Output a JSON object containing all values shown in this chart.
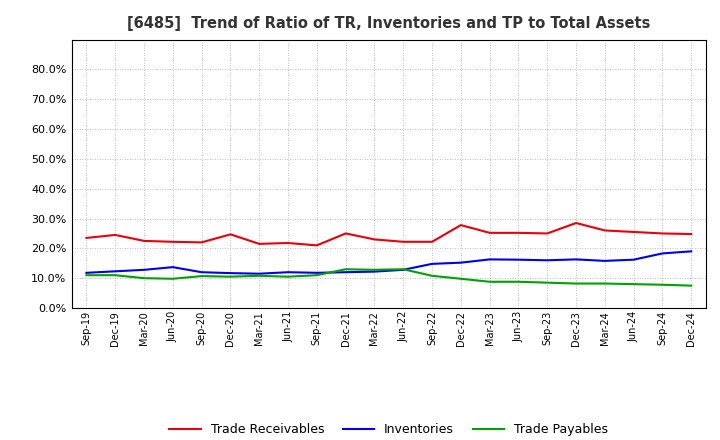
{
  "title": "[6485]  Trend of Ratio of TR, Inventories and TP to Total Assets",
  "x_labels": [
    "Sep-19",
    "Dec-19",
    "Mar-20",
    "Jun-20",
    "Sep-20",
    "Dec-20",
    "Mar-21",
    "Jun-21",
    "Sep-21",
    "Dec-21",
    "Mar-22",
    "Jun-22",
    "Sep-22",
    "Dec-22",
    "Mar-23",
    "Jun-23",
    "Sep-23",
    "Dec-23",
    "Mar-24",
    "Jun-24",
    "Sep-24",
    "Dec-24"
  ],
  "trade_receivables": [
    0.235,
    0.245,
    0.225,
    0.222,
    0.22,
    0.247,
    0.215,
    0.218,
    0.21,
    0.25,
    0.23,
    0.222,
    0.222,
    0.278,
    0.252,
    0.252,
    0.25,
    0.285,
    0.26,
    0.255,
    0.25,
    0.248
  ],
  "inventories": [
    0.118,
    0.123,
    0.128,
    0.137,
    0.12,
    0.117,
    0.115,
    0.12,
    0.118,
    0.12,
    0.122,
    0.128,
    0.148,
    0.152,
    0.163,
    0.162,
    0.16,
    0.163,
    0.158,
    0.162,
    0.183,
    0.19
  ],
  "trade_payables": [
    0.11,
    0.11,
    0.1,
    0.098,
    0.107,
    0.105,
    0.108,
    0.105,
    0.11,
    0.13,
    0.128,
    0.13,
    0.108,
    0.098,
    0.088,
    0.088,
    0.085,
    0.082,
    0.082,
    0.08,
    0.078,
    0.075
  ],
  "colors": {
    "trade_receivables": "#e8000d",
    "inventories": "#0000e8",
    "trade_payables": "#00a000"
  },
  "ylim": [
    0.0,
    0.9
  ],
  "yticks": [
    0.0,
    0.1,
    0.2,
    0.3,
    0.4,
    0.5,
    0.6,
    0.7,
    0.8
  ],
  "background_color": "#ffffff",
  "grid_color": "#aaaaaa"
}
